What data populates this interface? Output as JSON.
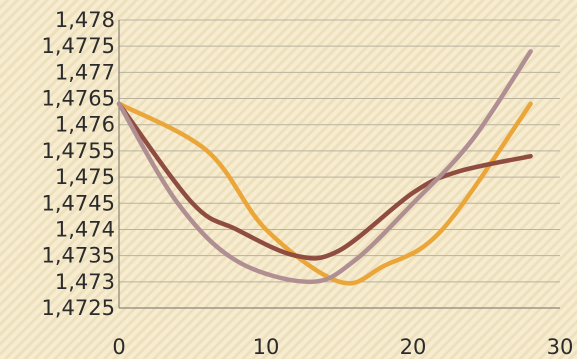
{
  "chart_data": {
    "type": "line",
    "title": "",
    "xlabel": "",
    "ylabel": "",
    "xlim": [
      0,
      30
    ],
    "ylim": [
      1.4725,
      1.478
    ],
    "x_ticks": [
      {
        "value": 0,
        "label": "0"
      },
      {
        "value": 10,
        "label": "10"
      },
      {
        "value": 20,
        "label": "20"
      },
      {
        "value": 30,
        "label": "30"
      }
    ],
    "y_ticks": [
      {
        "value": 1.4725,
        "label": "1,4725"
      },
      {
        "value": 1.473,
        "label": "1,473"
      },
      {
        "value": 1.4735,
        "label": "1,4735"
      },
      {
        "value": 1.474,
        "label": "1,474"
      },
      {
        "value": 1.4745,
        "label": "1,4745"
      },
      {
        "value": 1.475,
        "label": "1,475"
      },
      {
        "value": 1.4755,
        "label": "1,4755"
      },
      {
        "value": 1.476,
        "label": "1,476"
      },
      {
        "value": 1.4765,
        "label": "1,4765"
      },
      {
        "value": 1.477,
        "label": "1,477"
      },
      {
        "value": 1.4775,
        "label": "1,4775"
      },
      {
        "value": 1.478,
        "label": "1,478"
      }
    ],
    "grid": true,
    "legend": "none",
    "series": [
      {
        "color": "#eba63a",
        "points": [
          [
            0,
            1.4764
          ],
          [
            6,
            1.4755
          ],
          [
            10,
            1.474
          ],
          [
            15,
            1.473
          ],
          [
            18,
            1.4733
          ],
          [
            22,
            1.474
          ],
          [
            28,
            1.4764
          ]
        ]
      },
      {
        "color": "#8f4c40",
        "points": [
          [
            0,
            1.4764
          ],
          [
            5,
            1.4745
          ],
          [
            8,
            1.474
          ],
          [
            12,
            1.4735
          ],
          [
            15,
            1.4736
          ],
          [
            20,
            1.4747
          ],
          [
            23,
            1.4751
          ],
          [
            28,
            1.4754
          ]
        ]
      },
      {
        "color": "#b08f92",
        "points": [
          [
            0,
            1.4764
          ],
          [
            4,
            1.4745
          ],
          [
            8,
            1.4734
          ],
          [
            13,
            1.473
          ],
          [
            16,
            1.4734
          ],
          [
            20,
            1.4745
          ],
          [
            24,
            1.4757
          ],
          [
            28,
            1.4774
          ]
        ]
      }
    ]
  }
}
